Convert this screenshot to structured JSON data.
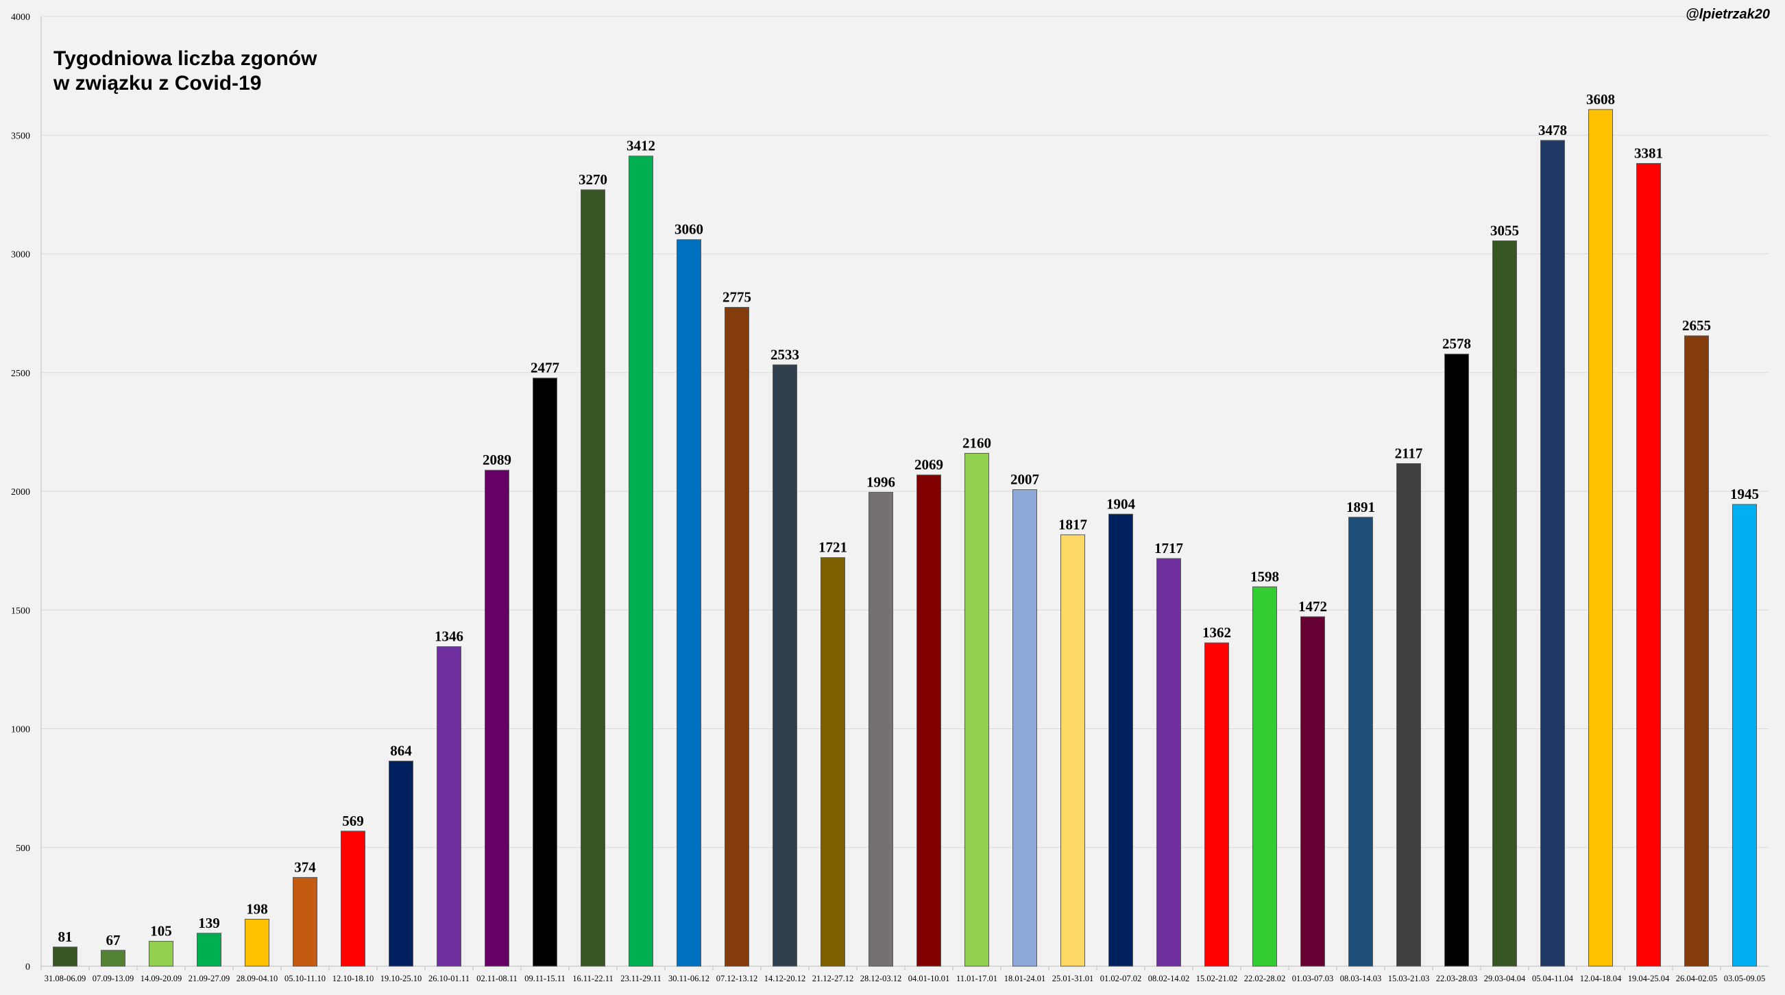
{
  "credit": "@lpietrzak20",
  "chart_data": {
    "type": "bar",
    "title_lines": [
      "Tygodniowa liczba zgonów",
      "w związku z Covid-19"
    ],
    "xlabel": "",
    "ylabel": "",
    "ylim": [
      0,
      4000
    ],
    "yticks": [
      0,
      500,
      1000,
      1500,
      2000,
      2500,
      3000,
      3500,
      4000
    ],
    "grid": true,
    "legend": "none",
    "categories": [
      "31.08-06.09",
      "07.09-13.09",
      "14.09-20.09",
      "21.09-27.09",
      "28.09-04.10",
      "05.10-11.10",
      "12.10-18.10",
      "19.10-25.10",
      "26.10-01.11",
      "02.11-08.11",
      "09.11-15.11",
      "16.11-22.11",
      "23.11-29.11",
      "30.11-06.12",
      "07.12-13.12",
      "14.12-20.12",
      "21.12-27.12",
      "28.12-03.12",
      "04.01-10.01",
      "11.01-17.01",
      "18.01-24.01",
      "25.01-31.01",
      "01.02-07.02",
      "08.02-14.02",
      "15.02-21.02",
      "22.02-28.02",
      "01.03-07.03",
      "08.03-14.03",
      "15.03-21.03",
      "22.03-28.03",
      "29.03-04.04",
      "05.04-11.04",
      "12.04-18.04",
      "19.04-25.04",
      "26.04-02.05",
      "03.05-09.05"
    ],
    "values": [
      81,
      67,
      105,
      139,
      198,
      374,
      569,
      864,
      1346,
      2089,
      2477,
      3270,
      3412,
      3060,
      2775,
      2533,
      1721,
      1996,
      2069,
      2160,
      2007,
      1817,
      1904,
      1717,
      1362,
      1598,
      1472,
      1891,
      2117,
      2578,
      3055,
      3478,
      3608,
      3381,
      2655,
      1945
    ],
    "colors": [
      "#375623",
      "#548235",
      "#92d050",
      "#00b050",
      "#ffc000",
      "#c55a11",
      "#ff0000",
      "#002060",
      "#7030a0",
      "#660066",
      "#000000",
      "#375623",
      "#00b050",
      "#0070c0",
      "#843c0c",
      "#323f4f",
      "#7f6000",
      "#767171",
      "#800000",
      "#92d050",
      "#8eaadb",
      "#ffd966",
      "#002060",
      "#7030a0",
      "#ff0000",
      "#33cc33",
      "#660033",
      "#1f4e79",
      "#404040",
      "#000000",
      "#375623",
      "#203864",
      "#ffc000",
      "#ff0000",
      "#843c0c",
      "#00b0f0"
    ]
  }
}
